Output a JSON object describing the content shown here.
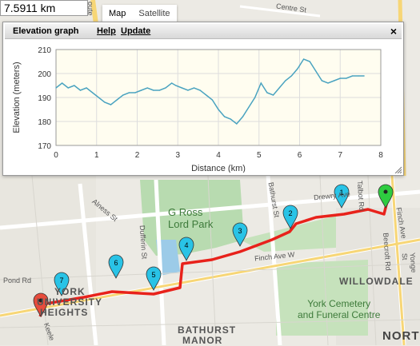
{
  "distance_box": {
    "value": "7.5911 km"
  },
  "map_type": {
    "map_label": "Map",
    "satellite_label": "Satellite",
    "partial_label": "oute"
  },
  "panel": {
    "title": "Elevation graph",
    "help_label": "Help",
    "update_label": "Update",
    "close_icon": "×"
  },
  "chart_data": {
    "type": "line",
    "title": "",
    "xlabel": "Distance (km)",
    "ylabel": "Elevation (meters)",
    "xlim": [
      0,
      8
    ],
    "ylim": [
      170,
      210
    ],
    "xticks": [
      0,
      1,
      2,
      3,
      4,
      5,
      6,
      7,
      8
    ],
    "yticks": [
      170,
      180,
      190,
      200,
      210
    ],
    "grid": true,
    "series": [
      {
        "color": "#4aa3c0",
        "x": [
          0.0,
          0.15,
          0.3,
          0.45,
          0.6,
          0.75,
          0.9,
          1.05,
          1.2,
          1.35,
          1.5,
          1.65,
          1.8,
          1.95,
          2.1,
          2.25,
          2.4,
          2.55,
          2.7,
          2.85,
          2.95,
          3.1,
          3.25,
          3.4,
          3.55,
          3.7,
          3.85,
          4.0,
          4.15,
          4.3,
          4.45,
          4.6,
          4.75,
          4.9,
          5.05,
          5.2,
          5.35,
          5.5,
          5.65,
          5.8,
          5.95,
          6.1,
          6.25,
          6.4,
          6.55,
          6.7,
          6.85,
          7.0,
          7.15,
          7.3,
          7.45,
          7.59
        ],
        "y": [
          194,
          196,
          194,
          195,
          193,
          194,
          192,
          190,
          188,
          187,
          189,
          191,
          192,
          192,
          193,
          194,
          193,
          193,
          194,
          196,
          195,
          194,
          193,
          194,
          193,
          191,
          189,
          185,
          182,
          181,
          179,
          182,
          186,
          190,
          196,
          192,
          191,
          194,
          197,
          199,
          202,
          206,
          205,
          201,
          197,
          196,
          197,
          198,
          198,
          199,
          199,
          199
        ]
      }
    ]
  },
  "map": {
    "park_label_line1": "G Ross",
    "park_label_line2": "Lord Park",
    "area_labels": [
      "WILLOWDALE",
      "BATHURST",
      "MANOR",
      "NORTH",
      "YORK",
      "UNIVERSITY",
      "HEIGHTS"
    ],
    "poi_label_line1": "York Cemetery",
    "poi_label_line2": "and Funeral Centre",
    "street_labels": [
      "Finch Ave W",
      "Drewry Ave",
      "Bathurst St",
      "Dufferin St",
      "Yonge St",
      "Beecroft Rd",
      "Pond Rd",
      "Keele",
      "Alness St",
      "Centre St",
      "Finch Ave",
      "Talbot Rd"
    ],
    "markers": [
      {
        "label": "1",
        "color": "#29c3e6"
      },
      {
        "label": "2",
        "color": "#29c3e6"
      },
      {
        "label": "3",
        "color": "#29c3e6"
      },
      {
        "label": "4",
        "color": "#29c3e6"
      },
      {
        "label": "5",
        "color": "#29c3e6"
      },
      {
        "label": "6",
        "color": "#29c3e6"
      },
      {
        "label": "7",
        "color": "#29c3e6"
      }
    ],
    "start_marker_color": "#e74c3c",
    "end_marker_color": "#2ecc40",
    "route_color": "#e8221b"
  }
}
